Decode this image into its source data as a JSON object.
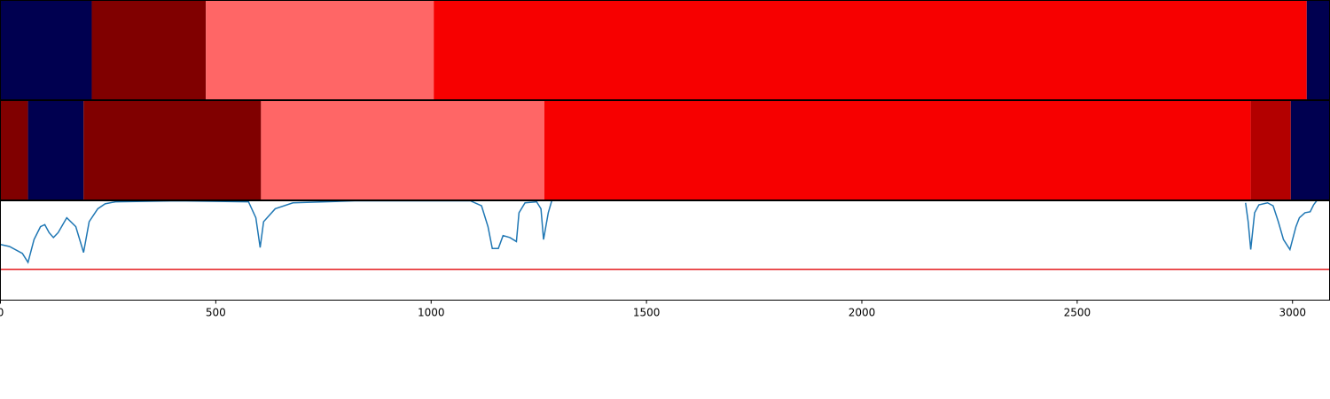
{
  "chart_data": [
    {
      "type": "segments",
      "xlim": [
        0,
        3086
      ],
      "segments": [
        {
          "start": 0,
          "end": 212,
          "color": "#000050"
        },
        {
          "start": 212,
          "end": 477,
          "color": "#800000"
        },
        {
          "start": 477,
          "end": 1006,
          "color": "#ff6666"
        },
        {
          "start": 1006,
          "end": 3033,
          "color": "#f70000"
        },
        {
          "start": 3033,
          "end": 3086,
          "color": "#000050"
        }
      ]
    },
    {
      "type": "segments",
      "xlim": [
        0,
        3086
      ],
      "segments": [
        {
          "start": 0,
          "end": 64,
          "color": "#800000"
        },
        {
          "start": 64,
          "end": 193,
          "color": "#000050"
        },
        {
          "start": 193,
          "end": 605,
          "color": "#800000"
        },
        {
          "start": 605,
          "end": 1263,
          "color": "#ff6666"
        },
        {
          "start": 1263,
          "end": 2903,
          "color": "#f70000"
        },
        {
          "start": 2903,
          "end": 2996,
          "color": "#b30000"
        },
        {
          "start": 2996,
          "end": 3086,
          "color": "#000050"
        }
      ]
    },
    {
      "type": "line",
      "xlim": [
        0,
        3086
      ],
      "ylim": [
        0,
        1
      ],
      "xticks": [
        0,
        500,
        1000,
        1500,
        2000,
        2500,
        3000
      ],
      "color": "#1f77b4",
      "threshold": 0.31,
      "threshold_color": "#e41a1c",
      "x": [
        0,
        21,
        51,
        64,
        78,
        93,
        103,
        113,
        123,
        134,
        154,
        175,
        193,
        206,
        226,
        243,
        267,
        412,
        576,
        593,
        603,
        611,
        638,
        679,
        823,
        1091,
        1117,
        1132,
        1142,
        1156,
        1167,
        1183,
        1198,
        1204,
        1218,
        1245,
        1255,
        1261,
        1272,
        1280,
        1300,
        2891,
        2897,
        2903,
        2912,
        2922,
        2942,
        2955,
        2967,
        2979,
        2994,
        3008,
        3016,
        3029,
        3041,
        3049,
        3056
      ],
      "values": [
        0.56,
        0.54,
        0.47,
        0.38,
        0.61,
        0.74,
        0.76,
        0.68,
        0.63,
        0.68,
        0.83,
        0.74,
        0.48,
        0.79,
        0.92,
        0.97,
        0.99,
        1.0,
        0.99,
        0.83,
        0.53,
        0.79,
        0.92,
        0.98,
        1.0,
        1.0,
        0.95,
        0.74,
        0.52,
        0.52,
        0.65,
        0.63,
        0.59,
        0.88,
        0.98,
        0.99,
        0.92,
        0.61,
        0.88,
        1.0,
        null,
        0.98,
        0.79,
        0.51,
        0.88,
        0.96,
        0.98,
        0.95,
        0.79,
        0.61,
        0.51,
        0.74,
        0.83,
        0.88,
        0.89,
        0.96,
        1.0
      ]
    }
  ]
}
